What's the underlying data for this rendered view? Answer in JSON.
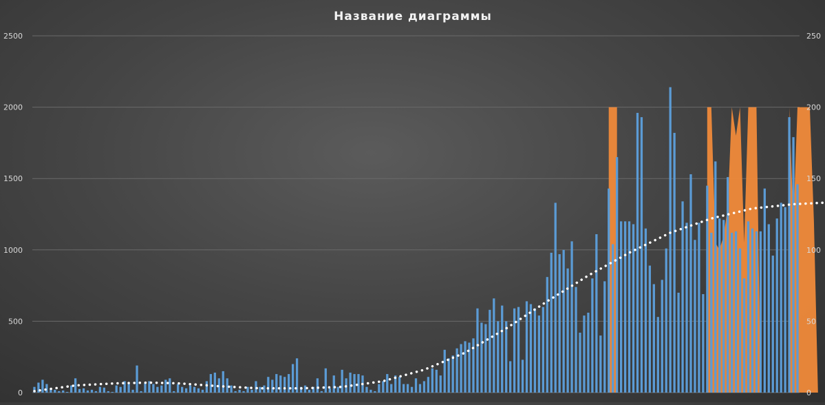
{
  "chart_data": {
    "type": "bar",
    "title": "Название диаграммы",
    "grid": true,
    "legend": "none",
    "colors": {
      "bars": "#5b9bd5",
      "area": "#f08a3a",
      "trendline": "#ffffff",
      "grid": "#6a6a6a"
    },
    "y_left": {
      "min": 0,
      "max": 2500,
      "ticks": [
        "0",
        "500",
        "1000",
        "1500",
        "2000",
        "2500"
      ]
    },
    "y_right": {
      "min": 0,
      "max": 250,
      "ticks": [
        "0",
        "50",
        "100",
        "150",
        "200",
        "250"
      ]
    },
    "series": [
      {
        "type": "bar",
        "axis": "left",
        "values": [
          40,
          70,
          90,
          60,
          30,
          20,
          10,
          15,
          5,
          50,
          100,
          25,
          30,
          15,
          20,
          10,
          40,
          35,
          10,
          5,
          50,
          40,
          80,
          60,
          20,
          190,
          10,
          70,
          80,
          60,
          40,
          50,
          90,
          100,
          10,
          60,
          40,
          30,
          50,
          40,
          30,
          20,
          80,
          130,
          140,
          100,
          150,
          100,
          50,
          10,
          20,
          10,
          40,
          20,
          80,
          40,
          50,
          110,
          90,
          130,
          120,
          110,
          130,
          200,
          240,
          40,
          50,
          20,
          40,
          100,
          10,
          170,
          30,
          120,
          40,
          160,
          100,
          140,
          130,
          130,
          120,
          40,
          20,
          10,
          60,
          80,
          130,
          60,
          120,
          110,
          60,
          60,
          40,
          100,
          60,
          80,
          110,
          170,
          160,
          120,
          300,
          240,
          260,
          310,
          340,
          360,
          350,
          380,
          590,
          490,
          480,
          580,
          660,
          500,
          610,
          500,
          220,
          590,
          600,
          230,
          640,
          620,
          590,
          540,
          600,
          810,
          980,
          1330,
          970,
          1000,
          870,
          1060,
          740,
          420,
          540,
          560,
          800,
          1110,
          400,
          780,
          1430,
          1040,
          1650,
          1200,
          1200,
          1200,
          1180,
          1960,
          1930,
          1150,
          890,
          760,
          530,
          790,
          1010,
          2140,
          1820,
          700,
          1340,
          1190,
          1530,
          1070,
          1190,
          690,
          1450,
          1120,
          1620,
          1220,
          1210,
          1510,
          1120,
          1130,
          1010,
          800,
          1200,
          1150,
          1130,
          1130,
          1430,
          1180,
          960,
          1220,
          1330,
          1300,
          1930,
          1790,
          1460
        ]
      },
      {
        "type": "area",
        "axis": "right",
        "points": [
          [
            140,
            0
          ],
          [
            140,
            200
          ],
          [
            141,
            200
          ],
          [
            142,
            200
          ],
          [
            142,
            0
          ],
          [
            164,
            0
          ],
          [
            164,
            200
          ],
          [
            165,
            200
          ],
          [
            166,
            105
          ],
          [
            167,
            100
          ],
          [
            168,
            110
          ],
          [
            169,
            130
          ],
          [
            170,
            200
          ],
          [
            171,
            180
          ],
          [
            172,
            200
          ],
          [
            173,
            105
          ],
          [
            174,
            200
          ],
          [
            175,
            200
          ],
          [
            176,
            200
          ],
          [
            177,
            0
          ],
          [
            184,
            0
          ],
          [
            184,
            200
          ],
          [
            185,
            120
          ],
          [
            186,
            200
          ],
          [
            187,
            200
          ],
          [
            188,
            200
          ],
          [
            189,
            200
          ],
          [
            190,
            120
          ],
          [
            191,
            0
          ],
          [
            197,
            0
          ],
          [
            197,
            200
          ],
          [
            198,
            200
          ],
          [
            199,
            200
          ],
          [
            200,
            150
          ],
          [
            201,
            200
          ],
          [
            202,
            130
          ],
          [
            203,
            200
          ],
          [
            204,
            200
          ],
          [
            205,
            0
          ],
          [
            210,
            0
          ],
          [
            210,
            200
          ],
          [
            211,
            105
          ],
          [
            212,
            95
          ],
          [
            213,
            130
          ],
          [
            214,
            0
          ]
        ]
      },
      {
        "type": "line",
        "style": "dotted",
        "axis": "left",
        "name": "",
        "points": [
          [
            0,
            10
          ],
          [
            10,
            50
          ],
          [
            20,
            65
          ],
          [
            28,
            70
          ],
          [
            35,
            65
          ],
          [
            45,
            45
          ],
          [
            55,
            30
          ],
          [
            65,
            30
          ],
          [
            75,
            40
          ],
          [
            85,
            80
          ],
          [
            95,
            160
          ],
          [
            105,
            280
          ],
          [
            115,
            450
          ],
          [
            125,
            640
          ],
          [
            135,
            820
          ],
          [
            145,
            980
          ],
          [
            155,
            1120
          ],
          [
            165,
            1220
          ],
          [
            175,
            1290
          ],
          [
            185,
            1320
          ],
          [
            192,
            1330
          ],
          [
            200,
            1320
          ],
          [
            206,
            1280
          ],
          [
            211,
            1240
          ]
        ]
      }
    ]
  }
}
